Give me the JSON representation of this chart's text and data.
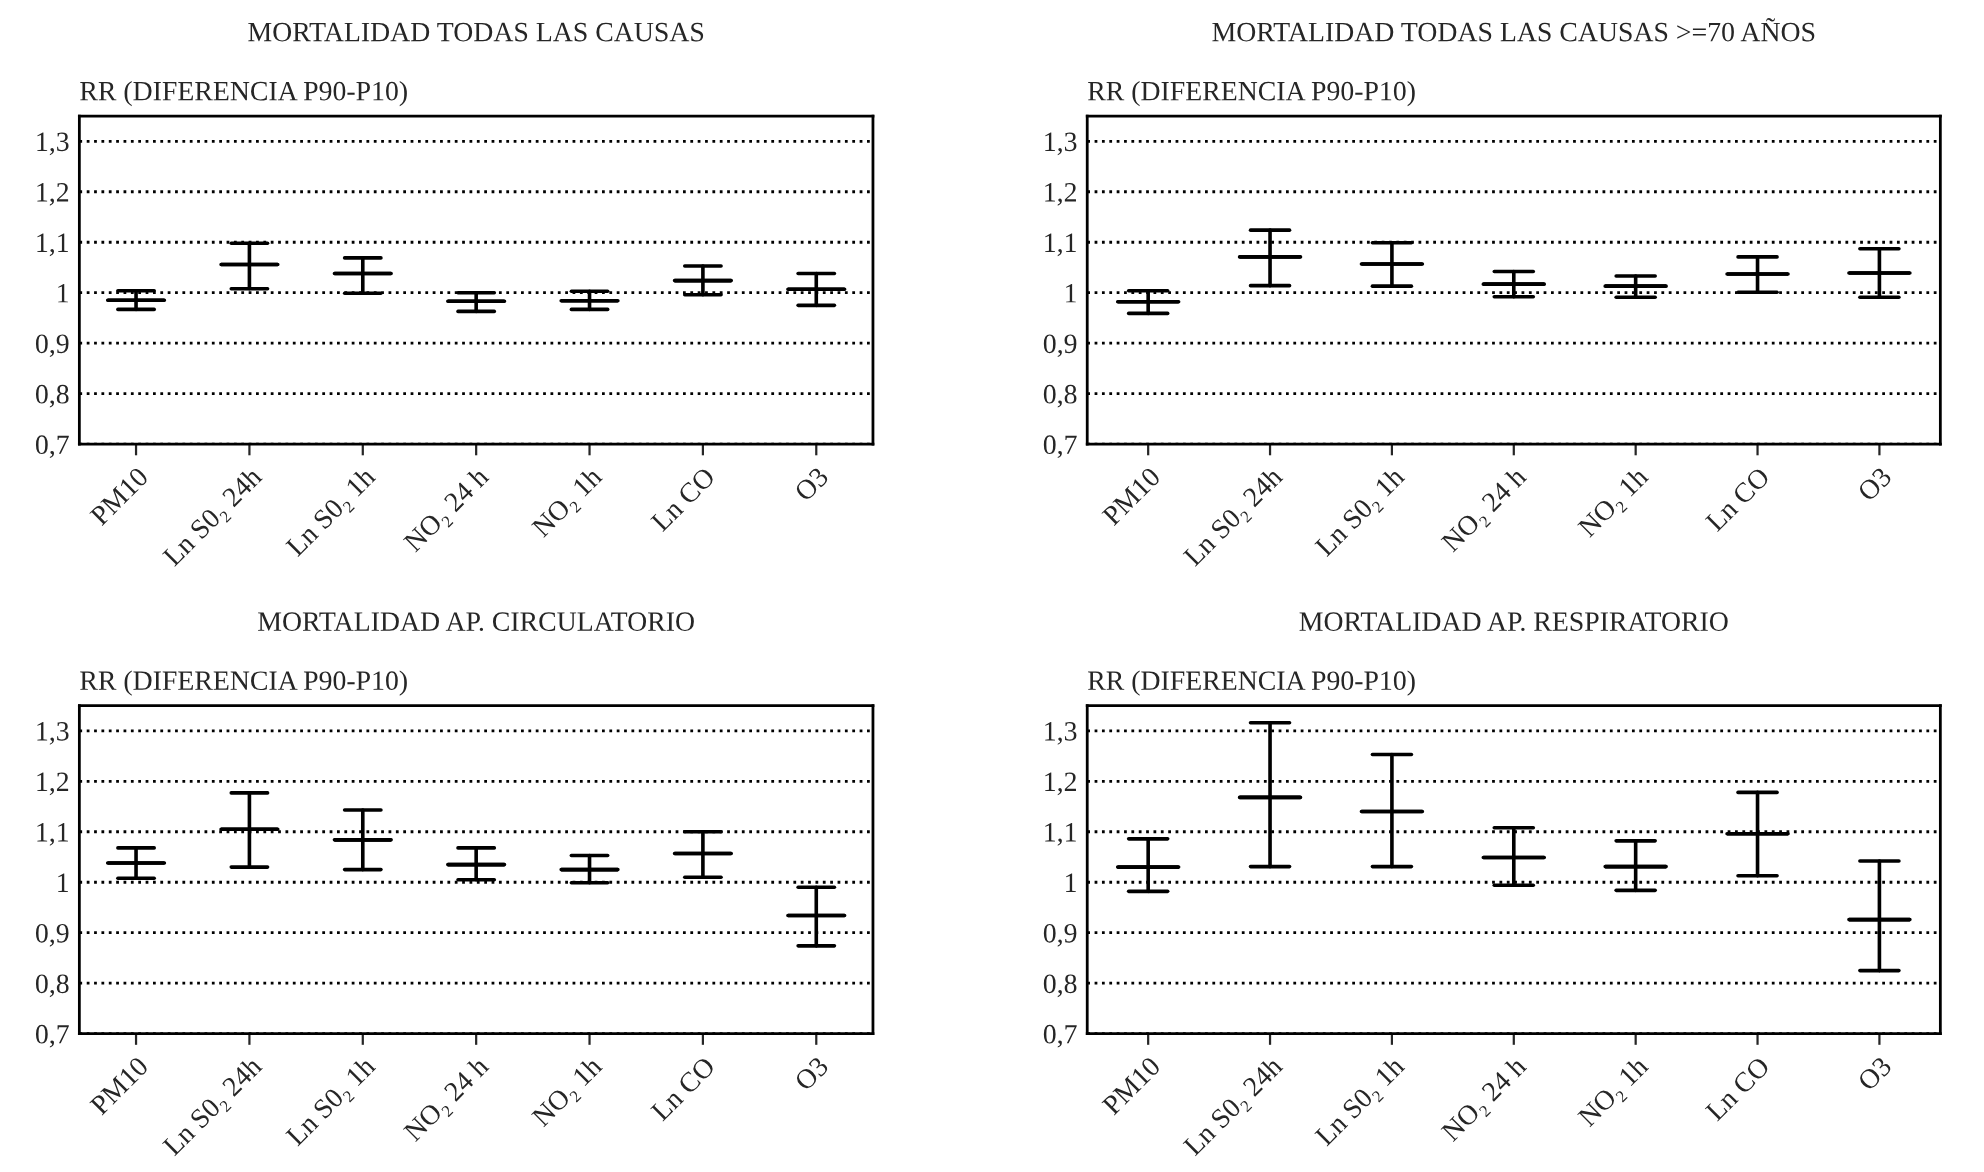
{
  "chart_data": [
    {
      "type": "box",
      "title": "MORTALIDAD TODAS LAS CAUSAS",
      "ylabel": "RR (DIFERENCIA P90-P10)",
      "categories": [
        "PM10",
        "Ln S0₂ 24h",
        "Ln S0₂ 1h",
        "NO₂ 24 h",
        "NO₂ 1h",
        "Ln CO",
        "O3"
      ],
      "boxes": [
        {
          "low": 0.967,
          "q1": 0.985,
          "median": 0.985,
          "q3": 0.985,
          "high": 1.004
        },
        {
          "low": 1.008,
          "q1": 1.056,
          "median": 1.056,
          "q3": 1.056,
          "high": 1.098
        },
        {
          "low": 0.999,
          "q1": 1.038,
          "median": 1.038,
          "q3": 1.038,
          "high": 1.069
        },
        {
          "low": 0.963,
          "q1": 0.983,
          "median": 0.983,
          "q3": 0.983,
          "high": 1.0
        },
        {
          "low": 0.967,
          "q1": 0.984,
          "median": 0.984,
          "q3": 0.984,
          "high": 1.003
        },
        {
          "low": 0.996,
          "q1": 1.024,
          "median": 1.024,
          "q3": 1.024,
          "high": 1.053
        },
        {
          "low": 0.975,
          "q1": 1.007,
          "median": 1.007,
          "q3": 1.007,
          "high": 1.038
        }
      ],
      "ylim": [
        0.7,
        1.35
      ],
      "yticks": [
        {
          "value": 0.7,
          "label": "0,7"
        },
        {
          "value": 0.8,
          "label": "0,8"
        },
        {
          "value": 0.9,
          "label": "0,9"
        },
        1,
        {
          "value": 1.1,
          "label": "1,1"
        },
        {
          "value": 1.2,
          "label": "1,2"
        },
        {
          "value": 1.3,
          "label": "1,3"
        }
      ],
      "grid": "y"
    },
    {
      "type": "box",
      "title": "MORTALIDAD TODAS LAS CAUSAS >=70 AÑOS",
      "ylabel": "RR (DIFERENCIA P90-P10)",
      "categories": [
        "PM10",
        "Ln S0₂ 24h",
        "Ln S0₂ 1h",
        "NO₂ 24 h",
        "NO₂ 1h",
        "Ln CO",
        "O3"
      ],
      "boxes": [
        {
          "low": 0.959,
          "q1": 0.982,
          "median": 0.982,
          "q3": 0.982,
          "high": 1.004
        },
        {
          "low": 1.014,
          "q1": 1.071,
          "median": 1.071,
          "q3": 1.071,
          "high": 1.124
        },
        {
          "low": 1.013,
          "q1": 1.057,
          "median": 1.057,
          "q3": 1.057,
          "high": 1.099
        },
        {
          "low": 0.992,
          "q1": 1.017,
          "median": 1.017,
          "q3": 1.017,
          "high": 1.042
        },
        {
          "low": 0.991,
          "q1": 1.013,
          "median": 1.013,
          "q3": 1.013,
          "high": 1.033
        },
        {
          "low": 1.001,
          "q1": 1.037,
          "median": 1.037,
          "q3": 1.037,
          "high": 1.071
        },
        {
          "low": 0.991,
          "q1": 1.039,
          "median": 1.039,
          "q3": 1.039,
          "high": 1.087
        }
      ],
      "ylim": [
        0.7,
        1.35
      ],
      "yticks": [
        {
          "value": 0.7,
          "label": "0,7"
        },
        {
          "value": 0.8,
          "label": "0,8"
        },
        {
          "value": 0.9,
          "label": "0,9"
        },
        1,
        {
          "value": 1.1,
          "label": "1,1"
        },
        {
          "value": 1.2,
          "label": "1,2"
        },
        {
          "value": 1.3,
          "label": "1,3"
        }
      ],
      "grid": "y"
    },
    {
      "type": "box",
      "title": "MORTALIDAD AP. CIRCULATORIO",
      "ylabel": "RR (DIFERENCIA P90-P10)",
      "categories": [
        "PM10",
        "Ln S0₂ 24h",
        "Ln S0₂ 1h",
        "NO₂ 24 h",
        "NO₂ 1h",
        "Ln CO",
        "O3"
      ],
      "boxes": [
        {
          "low": 1.008,
          "q1": 1.038,
          "median": 1.038,
          "q3": 1.038,
          "high": 1.068
        },
        {
          "low": 1.03,
          "q1": 1.105,
          "median": 1.105,
          "q3": 1.105,
          "high": 1.177
        },
        {
          "low": 1.025,
          "q1": 1.084,
          "median": 1.084,
          "q3": 1.084,
          "high": 1.143
        },
        {
          "low": 1.005,
          "q1": 1.035,
          "median": 1.035,
          "q3": 1.035,
          "high": 1.068
        },
        {
          "low": 0.999,
          "q1": 1.025,
          "median": 1.025,
          "q3": 1.025,
          "high": 1.053
        },
        {
          "low": 1.01,
          "q1": 1.057,
          "median": 1.057,
          "q3": 1.057,
          "high": 1.1
        },
        {
          "low": 0.874,
          "q1": 0.934,
          "median": 0.934,
          "q3": 0.934,
          "high": 0.99
        }
      ],
      "ylim": [
        0.7,
        1.35
      ],
      "yticks": [
        {
          "value": 0.7,
          "label": "0,7"
        },
        {
          "value": 0.8,
          "label": "0,8"
        },
        {
          "value": 0.9,
          "label": "0,9"
        },
        1,
        {
          "value": 1.1,
          "label": "1,1"
        },
        {
          "value": 1.2,
          "label": "1,2"
        },
        {
          "value": 1.3,
          "label": "1,3"
        }
      ],
      "grid": "y"
    },
    {
      "type": "box",
      "title": "MORTALIDAD AP. RESPIRATORIO",
      "ylabel": "RR (DIFERENCIA P90-P10)",
      "categories": [
        "PM10",
        "Ln S0₂ 24h",
        "Ln S0₂ 1h",
        "NO₂ 24 h",
        "NO₂ 1h",
        "Ln CO",
        "O3"
      ],
      "boxes": [
        {
          "low": 0.982,
          "q1": 1.03,
          "median": 1.03,
          "q3": 1.03,
          "high": 1.086
        },
        {
          "low": 1.031,
          "q1": 1.168,
          "median": 1.168,
          "q3": 1.168,
          "high": 1.316
        },
        {
          "low": 1.031,
          "q1": 1.14,
          "median": 1.14,
          "q3": 1.14,
          "high": 1.253
        },
        {
          "low": 0.994,
          "q1": 1.049,
          "median": 1.049,
          "q3": 1.049,
          "high": 1.108
        },
        {
          "low": 0.984,
          "q1": 1.031,
          "median": 1.031,
          "q3": 1.031,
          "high": 1.082
        },
        {
          "low": 1.013,
          "q1": 1.096,
          "median": 1.096,
          "q3": 1.096,
          "high": 1.178
        },
        {
          "low": 0.825,
          "q1": 0.926,
          "median": 0.926,
          "q3": 0.926,
          "high": 1.042
        }
      ],
      "ylim": [
        0.7,
        1.35
      ],
      "yticks": [
        {
          "value": 0.7,
          "label": "0,7"
        },
        {
          "value": 0.8,
          "label": "0,8"
        },
        {
          "value": 0.9,
          "label": "0,9"
        },
        1,
        {
          "value": 1.1,
          "label": "1,1"
        },
        {
          "value": 1.2,
          "label": "1,2"
        },
        {
          "value": 1.3,
          "label": "1,3"
        }
      ],
      "grid": "y"
    }
  ]
}
